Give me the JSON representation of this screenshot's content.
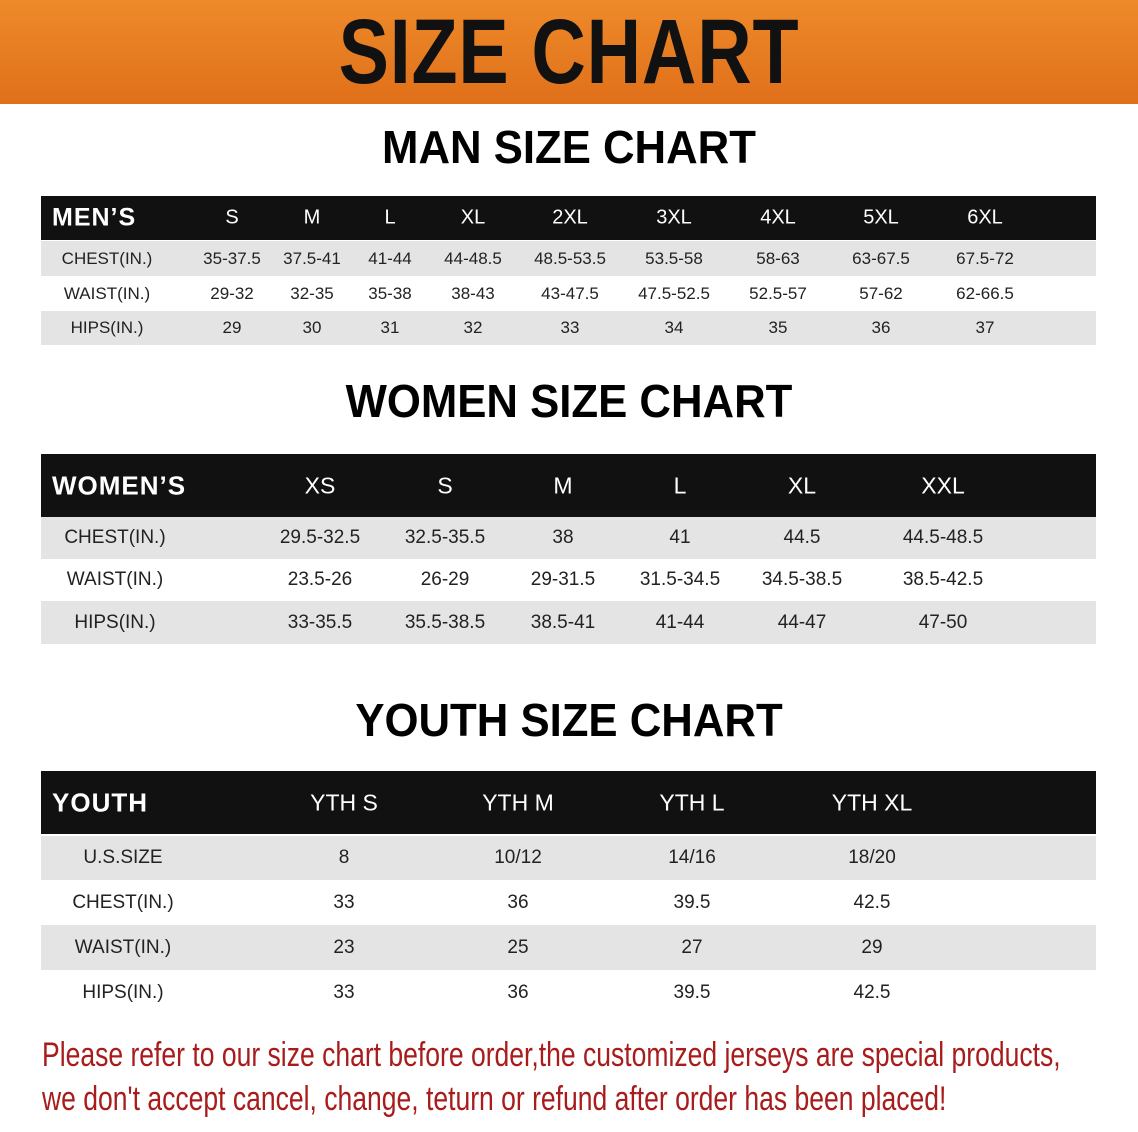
{
  "banner": {
    "title": "SIZE CHART"
  },
  "men": {
    "title": "MAN SIZE CHART",
    "header_label": "MEN’S",
    "sizes": [
      "S",
      "M",
      "L",
      "XL",
      "2XL",
      "3XL",
      "4XL",
      "5XL",
      "6XL"
    ],
    "rows": [
      {
        "label": "CHEST(IN.)",
        "values": [
          "35-37.5",
          "37.5-41",
          "41-44",
          "44-48.5",
          "48.5-53.5",
          "53.5-58",
          "58-63",
          "63-67.5",
          "67.5-72"
        ]
      },
      {
        "label": "WAIST(IN.)",
        "values": [
          "29-32",
          "32-35",
          "35-38",
          "38-43",
          "43-47.5",
          "47.5-52.5",
          "52.5-57",
          "57-62",
          "62-66.5"
        ]
      },
      {
        "label": "HIPS(IN.)",
        "values": [
          "29",
          "30",
          "31",
          "32",
          "33",
          "34",
          "35",
          "36",
          "37"
        ]
      }
    ]
  },
  "women": {
    "title": "WOMEN SIZE CHART",
    "header_label": "WOMEN’S",
    "sizes": [
      "XS",
      "S",
      "M",
      "L",
      "XL",
      "XXL"
    ],
    "rows": [
      {
        "label": "CHEST(IN.)",
        "values": [
          "29.5-32.5",
          "32.5-35.5",
          "38",
          "41",
          "44.5",
          "44.5-48.5"
        ]
      },
      {
        "label": "WAIST(IN.)",
        "values": [
          "23.5-26",
          "26-29",
          "29-31.5",
          "31.5-34.5",
          "34.5-38.5",
          "38.5-42.5"
        ]
      },
      {
        "label": "HIPS(IN.)",
        "values": [
          "33-35.5",
          "35.5-38.5",
          "38.5-41",
          "41-44",
          "44-47",
          "47-50"
        ]
      }
    ]
  },
  "youth": {
    "title": "YOUTH SIZE CHART",
    "header_label": "YOUTH",
    "sizes": [
      "YTH S",
      "YTH M",
      "YTH L",
      "YTH XL"
    ],
    "rows": [
      {
        "label": "U.S.SIZE",
        "values": [
          "8",
          "10/12",
          "14/16",
          "18/20"
        ]
      },
      {
        "label": "CHEST(IN.)",
        "values": [
          "33",
          "36",
          "39.5",
          "42.5"
        ]
      },
      {
        "label": "WAIST(IN.)",
        "values": [
          "23",
          "25",
          "27",
          "29"
        ]
      },
      {
        "label": "HIPS(IN.)",
        "values": [
          "33",
          "36",
          "39.5",
          "42.5"
        ]
      }
    ]
  },
  "notice": {
    "line1": "Please refer to our size chart before order,the customized jerseys are special products,",
    "line2": "we don't accept cancel, change, teturn or refund after order has been placed!"
  },
  "colors": {
    "banner": "#e87a1e",
    "header_bg": "#111111",
    "row_grey": "#e4e4e4",
    "notice": "#a81c1c"
  }
}
